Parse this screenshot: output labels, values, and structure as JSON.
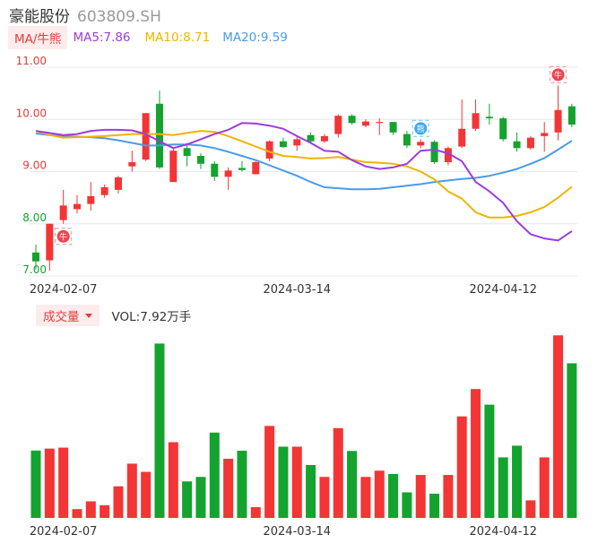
{
  "header": {
    "name": "豪能股份",
    "code": "603809.SH"
  },
  "ma_legend": {
    "button": "MA/牛熊",
    "ma5": "MA5:7.86",
    "ma10": "MA10:8.71",
    "ma20": "MA20:9.59"
  },
  "volume_legend": {
    "button": "成交量",
    "value": "VOL:7.92万手"
  },
  "colors": {
    "up": "#f33535",
    "down": "#14a32e",
    "ma5": "#9d3be0",
    "ma10": "#f0b400",
    "ma20": "#4a9be8",
    "grid": "#e8e8e8",
    "axis_text": "#e83a3a",
    "date_text": "#333333"
  },
  "icons": {
    "bull": "bull-badge-icon",
    "bear": "bear-badge-icon"
  },
  "chart_data": [
    {
      "type": "candlestick",
      "ylim": [
        7.0,
        11.0
      ],
      "y_ticks": [
        "11.00",
        "10.00",
        "9.00",
        "8.00",
        "7.00"
      ],
      "x_tick_labels": [
        {
          "index": 2,
          "label": "2024-02-07"
        },
        {
          "index": 19,
          "label": "2024-03-14"
        },
        {
          "index": 34,
          "label": "2024-04-12"
        }
      ],
      "candles": [
        {
          "o": 7.45,
          "c": 7.28,
          "h": 7.6,
          "l": 7.12
        },
        {
          "o": 7.3,
          "c": 8.0,
          "h": 8.0,
          "l": 7.1
        },
        {
          "o": 8.07,
          "c": 8.35,
          "h": 8.65,
          "l": 8.0
        },
        {
          "o": 8.28,
          "c": 8.38,
          "h": 8.55,
          "l": 8.2
        },
        {
          "o": 8.38,
          "c": 8.53,
          "h": 8.8,
          "l": 8.25
        },
        {
          "o": 8.55,
          "c": 8.7,
          "h": 8.75,
          "l": 8.5
        },
        {
          "o": 8.65,
          "c": 8.89,
          "h": 8.92,
          "l": 8.58
        },
        {
          "o": 9.1,
          "c": 9.18,
          "h": 9.4,
          "l": 9.0
        },
        {
          "o": 9.23,
          "c": 10.12,
          "h": 10.12,
          "l": 9.2
        },
        {
          "o": 10.3,
          "c": 9.08,
          "h": 10.55,
          "l": 9.05
        },
        {
          "o": 8.8,
          "c": 9.4,
          "h": 9.45,
          "l": 8.8
        },
        {
          "o": 9.45,
          "c": 9.3,
          "h": 9.55,
          "l": 9.1
        },
        {
          "o": 9.3,
          "c": 9.15,
          "h": 9.35,
          "l": 9.05
        },
        {
          "o": 9.15,
          "c": 8.9,
          "h": 9.2,
          "l": 8.82
        },
        {
          "o": 8.9,
          "c": 9.02,
          "h": 9.08,
          "l": 8.65
        },
        {
          "o": 9.07,
          "c": 9.03,
          "h": 9.2,
          "l": 9.0
        },
        {
          "o": 8.95,
          "c": 9.18,
          "h": 9.2,
          "l": 8.95
        },
        {
          "o": 9.25,
          "c": 9.58,
          "h": 9.6,
          "l": 9.2
        },
        {
          "o": 9.58,
          "c": 9.47,
          "h": 9.65,
          "l": 9.45
        },
        {
          "o": 9.5,
          "c": 9.62,
          "h": 9.7,
          "l": 9.4
        },
        {
          "o": 9.7,
          "c": 9.58,
          "h": 9.75,
          "l": 9.55
        },
        {
          "o": 9.58,
          "c": 9.68,
          "h": 9.72,
          "l": 9.55
        },
        {
          "o": 9.72,
          "c": 10.07,
          "h": 10.1,
          "l": 9.65
        },
        {
          "o": 10.07,
          "c": 9.93,
          "h": 10.1,
          "l": 9.9
        },
        {
          "o": 9.88,
          "c": 9.96,
          "h": 10.0,
          "l": 9.85
        },
        {
          "o": 9.93,
          "c": 9.95,
          "h": 10.02,
          "l": 9.7
        },
        {
          "o": 9.95,
          "c": 9.75,
          "h": 9.95,
          "l": 9.7
        },
        {
          "o": 9.72,
          "c": 9.5,
          "h": 9.78,
          "l": 9.45
        },
        {
          "o": 9.5,
          "c": 9.57,
          "h": 9.62,
          "l": 9.45
        },
        {
          "o": 9.57,
          "c": 9.18,
          "h": 9.6,
          "l": 9.15
        },
        {
          "o": 9.18,
          "c": 9.45,
          "h": 9.48,
          "l": 9.12
        },
        {
          "o": 9.48,
          "c": 9.82,
          "h": 10.38,
          "l": 9.45
        },
        {
          "o": 9.82,
          "c": 10.12,
          "h": 10.38,
          "l": 9.78
        },
        {
          "o": 10.05,
          "c": 10.02,
          "h": 10.3,
          "l": 9.9
        },
        {
          "o": 10.02,
          "c": 9.62,
          "h": 10.05,
          "l": 9.58
        },
        {
          "o": 9.58,
          "c": 9.45,
          "h": 9.75,
          "l": 9.38
        },
        {
          "o": 9.45,
          "c": 9.65,
          "h": 9.68,
          "l": 9.42
        },
        {
          "o": 9.68,
          "c": 9.74,
          "h": 9.95,
          "l": 9.38
        },
        {
          "o": 9.75,
          "c": 10.18,
          "h": 10.65,
          "l": 9.6
        },
        {
          "o": 10.25,
          "c": 9.9,
          "h": 10.3,
          "l": 9.85
        }
      ],
      "ma5": [
        9.78,
        9.74,
        9.7,
        9.72,
        9.78,
        9.8,
        9.8,
        9.79,
        9.72,
        9.58,
        9.45,
        9.52,
        9.62,
        9.72,
        9.8,
        9.93,
        9.92,
        9.88,
        9.82,
        9.68,
        9.55,
        9.4,
        9.38,
        9.22,
        9.1,
        9.05,
        9.08,
        9.15,
        9.4,
        9.42,
        9.35,
        9.2,
        8.8,
        8.62,
        8.4,
        8.05,
        7.8,
        7.72,
        7.68,
        7.86
      ],
      "ma10": [
        9.78,
        9.7,
        9.65,
        9.66,
        9.67,
        9.68,
        9.7,
        9.72,
        9.72,
        9.72,
        9.7,
        9.74,
        9.78,
        9.76,
        9.68,
        9.58,
        9.48,
        9.38,
        9.3,
        9.28,
        9.25,
        9.26,
        9.28,
        9.23,
        9.18,
        9.17,
        9.15,
        9.1,
        9.0,
        8.85,
        8.62,
        8.48,
        8.22,
        8.12,
        8.12,
        8.15,
        8.22,
        8.32,
        8.5,
        8.71
      ],
      "ma20": [
        9.73,
        9.7,
        9.68,
        9.67,
        9.66,
        9.64,
        9.6,
        9.55,
        9.5,
        9.5,
        9.52,
        9.52,
        9.5,
        9.45,
        9.38,
        9.3,
        9.22,
        9.12,
        9.02,
        8.92,
        8.8,
        8.7,
        8.68,
        8.66,
        8.66,
        8.67,
        8.7,
        8.73,
        8.76,
        8.8,
        8.83,
        8.86,
        8.88,
        8.92,
        8.98,
        9.05,
        9.15,
        9.26,
        9.42,
        9.59
      ],
      "markers": [
        {
          "index": 2,
          "type": "bull",
          "at": "low"
        },
        {
          "index": 28,
          "type": "bear",
          "at": "high"
        },
        {
          "index": 38,
          "type": "bull",
          "at": "high"
        }
      ],
      "marker_text": {
        "bull": "牛",
        "bear": "熊"
      }
    },
    {
      "type": "bar",
      "title": "成交量",
      "unit": "万手",
      "ylim": [
        0,
        9.5
      ],
      "volumes": [
        3.45,
        3.55,
        3.6,
        0.45,
        0.85,
        0.65,
        1.62,
        2.78,
        2.36,
        8.93,
        3.88,
        1.87,
        2.1,
        4.37,
        3.03,
        3.44,
        0.55,
        4.71,
        3.65,
        3.65,
        2.71,
        2.1,
        4.6,
        3.43,
        2.1,
        2.42,
        2.25,
        1.31,
        2.2,
        1.24,
        2.2,
        5.2,
        6.6,
        5.8,
        3.1,
        3.7,
        0.9,
        3.1,
        9.35,
        7.92
      ]
    }
  ]
}
